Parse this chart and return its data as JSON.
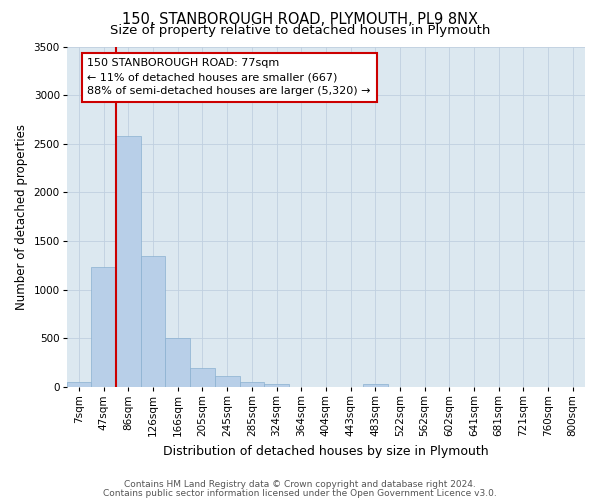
{
  "title": "150, STANBOROUGH ROAD, PLYMOUTH, PL9 8NX",
  "subtitle": "Size of property relative to detached houses in Plymouth",
  "bar_labels": [
    "7sqm",
    "47sqm",
    "86sqm",
    "126sqm",
    "166sqm",
    "205sqm",
    "245sqm",
    "285sqm",
    "324sqm",
    "364sqm",
    "404sqm",
    "443sqm",
    "483sqm",
    "522sqm",
    "562sqm",
    "602sqm",
    "641sqm",
    "681sqm",
    "721sqm",
    "760sqm",
    "800sqm"
  ],
  "bar_values": [
    50,
    1230,
    2580,
    1350,
    500,
    200,
    110,
    50,
    30,
    0,
    0,
    0,
    30,
    0,
    0,
    0,
    0,
    0,
    0,
    0,
    0
  ],
  "bar_color": "#b8cfe8",
  "bar_edge_color": "#8ab0d0",
  "ylabel": "Number of detached properties",
  "xlabel": "Distribution of detached houses by size in Plymouth",
  "ylim": [
    0,
    3500
  ],
  "yticks": [
    0,
    500,
    1000,
    1500,
    2000,
    2500,
    3000,
    3500
  ],
  "vline_x": 1.5,
  "vline_color": "#cc0000",
  "annotation_title": "150 STANBOROUGH ROAD: 77sqm",
  "annotation_line1": "← 11% of detached houses are smaller (667)",
  "annotation_line2": "88% of semi-detached houses are larger (5,320) →",
  "annotation_box_facecolor": "#ffffff",
  "annotation_box_edgecolor": "#cc0000",
  "footer1": "Contains HM Land Registry data © Crown copyright and database right 2024.",
  "footer2": "Contains public sector information licensed under the Open Government Licence v3.0.",
  "bg_color": "#ffffff",
  "plot_bg_color": "#dce8f0",
  "grid_color": "#c0d0e0",
  "title_fontsize": 10.5,
  "subtitle_fontsize": 9.5,
  "ylabel_fontsize": 8.5,
  "xlabel_fontsize": 9,
  "tick_fontsize": 7.5,
  "annotation_fontsize": 8,
  "footer_fontsize": 6.5
}
